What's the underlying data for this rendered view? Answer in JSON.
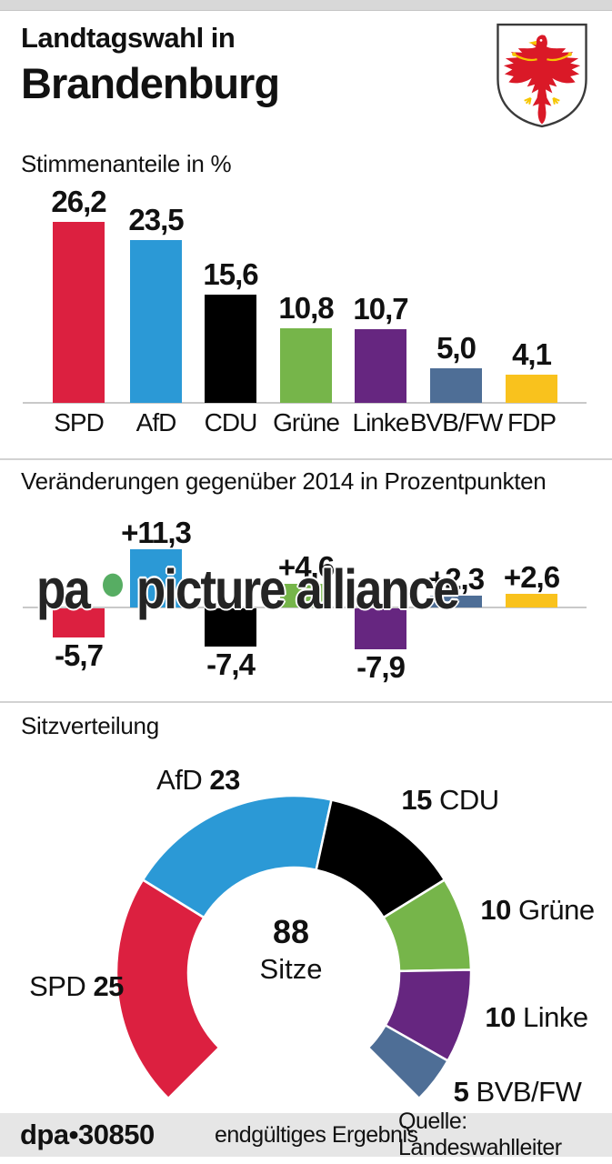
{
  "header": {
    "title_line1": "Landtagswahl in",
    "title_line2": "Brandenburg",
    "coat_of_arms": "brandenburg-red-eagle-shield"
  },
  "sections": {
    "votes_title": "Stimmenanteile in %",
    "change_title": "Veränderungen gegenüber 2014 in Prozentpunkten",
    "seats_title": "Sitzverteilung"
  },
  "colors": {
    "spd": "#dc2040",
    "afd": "#2b99d6",
    "cdu": "#000000",
    "gruene": "#76b54a",
    "linke": "#662680",
    "bvb_fw": "#4e6e96",
    "fdp": "#f9c21d",
    "axis": "#c9c9c9",
    "top_strip": "#d8d8d8",
    "footer_bg": "#e6e6e6",
    "watermark_text": "#242424",
    "watermark_dot": "#57ad63"
  },
  "chart_data": [
    {
      "type": "bar",
      "title": "Stimmenanteile in %",
      "unit": "%",
      "categories": [
        "SPD",
        "AfD",
        "CDU",
        "Grüne",
        "Linke",
        "BVB/FW",
        "FDP"
      ],
      "values": [
        26.2,
        23.5,
        15.6,
        10.8,
        10.7,
        5.0,
        4.1
      ],
      "value_labels": [
        "26,2",
        "23,5",
        "15,6",
        "10,8",
        "10,7",
        "5,0",
        "4,1"
      ],
      "colors": [
        "#dc2040",
        "#2b99d6",
        "#000000",
        "#76b54a",
        "#662680",
        "#4e6e96",
        "#f9c21d"
      ],
      "ylim": [
        0,
        30
      ],
      "grid": false,
      "legend": "none"
    },
    {
      "type": "bar",
      "title": "Veränderungen gegenüber 2014 in Prozentpunkten",
      "unit": "Prozentpunkte",
      "categories": [
        "SPD",
        "AfD",
        "CDU",
        "Grüne",
        "Linke",
        "BVB/FW",
        "FDP"
      ],
      "values": [
        -5.7,
        11.3,
        -7.4,
        4.6,
        -7.9,
        2.3,
        2.6
      ],
      "value_labels": [
        "-5,7",
        "+11,3",
        "-7,4",
        "+4,6",
        "-7,9",
        "+2,3",
        "+2,6"
      ],
      "colors": [
        "#dc2040",
        "#2b99d6",
        "#000000",
        "#76b54a",
        "#662680",
        "#4e6e96",
        "#f9c21d"
      ],
      "ylim": [
        -9,
        12
      ],
      "grid": false,
      "legend": "none"
    },
    {
      "type": "donut",
      "title": "Sitzverteilung",
      "categories": [
        "SPD",
        "AfD",
        "CDU",
        "Grüne",
        "Linke",
        "BVB/FW"
      ],
      "values": [
        25,
        23,
        15,
        10,
        10,
        5
      ],
      "colors": [
        "#dc2040",
        "#2b99d6",
        "#000000",
        "#76b54a",
        "#662680",
        "#4e6e96"
      ],
      "total": 88,
      "arc_degrees": 270,
      "center": {
        "value": "88",
        "label": "Sitze"
      }
    }
  ],
  "seat_labels": [
    {
      "party": "AfD",
      "value": "23",
      "value_first": false
    },
    {
      "party": "CDU",
      "value": "15",
      "value_first": true
    },
    {
      "party": "Grüne",
      "value": "10",
      "value_first": true
    },
    {
      "party": "Linke",
      "value": "10",
      "value_first": true
    },
    {
      "party": "BVB/FW",
      "value": "5",
      "value_first": true
    },
    {
      "party": "SPD",
      "value": "25",
      "value_first": false
    }
  ],
  "watermark": {
    "prefix": "pa",
    "suffix": "picture alliance",
    "dot_color": "#57ad63"
  },
  "footer": {
    "brand": "dpa",
    "separator": "•",
    "number": "30850",
    "status": "endgültiges Ergebnis",
    "source": "Quelle: Landeswahlleiter"
  }
}
